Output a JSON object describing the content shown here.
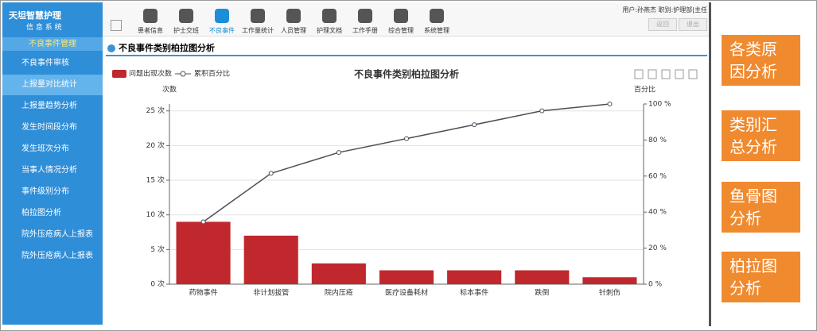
{
  "app": {
    "logo": "天坦智慧护理",
    "logo_sub": "信 息 系 统",
    "section": "不良事件管理",
    "menu": [
      "不良事件审核",
      "上报量对比统计",
      "上报量趋势分析",
      "发生时间段分布",
      "发生班次分布",
      "当事人情况分析",
      "事件级别分布",
      "柏拉图分析",
      "院外压疮病人上报表",
      "院外压疮病人上报表"
    ],
    "toolbar": [
      "患者信息",
      "护士交班",
      "不良事件",
      "工作量统计",
      "人员管理",
      "护理文档",
      "工作手册",
      "综合管理",
      "系统管理"
    ],
    "user": "用户:孙燕杰  职别:护理部|主任",
    "buttons": [
      "返回",
      "退出"
    ],
    "page_title": "不良事件类别柏拉图分析",
    "side_buttons": [
      "各类原因分析",
      "类别汇总分析",
      "鱼骨图分析",
      "柏拉图分析"
    ]
  },
  "chart_data": {
    "type": "pareto",
    "title": "不良事件类别柏拉图分析",
    "categories": [
      "药物事件",
      "非计划拔管",
      "院内压疮",
      "医疗设备耗材",
      "标本事件",
      "跌倒",
      "针刺伤"
    ],
    "series": [
      {
        "name": "问题出现次数",
        "color": "#c0282d",
        "values": [
          9,
          7,
          3,
          2,
          2,
          2,
          1
        ]
      },
      {
        "name": "累积百分比",
        "color": "#4a4f55",
        "axis": "y2",
        "values": [
          34.6,
          61.5,
          73.1,
          80.8,
          88.5,
          96.2,
          100
        ]
      }
    ],
    "y_label": "次数",
    "y2_label": "百分比",
    "ylim": [
      0,
      26
    ],
    "yticks": [
      {
        "value": 0,
        "label": "0 次"
      },
      {
        "value": 5,
        "label": "5 次"
      },
      {
        "value": 10,
        "label": "10 次"
      },
      {
        "value": 15,
        "label": "15 次"
      },
      {
        "value": 20,
        "label": "20 次"
      },
      {
        "value": 25,
        "label": "25 次"
      }
    ],
    "y2lim": [
      0,
      100
    ],
    "y2ticks": [
      {
        "value": 0,
        "label": "0 %"
      },
      {
        "value": 20,
        "label": "20 %"
      },
      {
        "value": 40,
        "label": "40 %"
      },
      {
        "value": 60,
        "label": "60 %"
      },
      {
        "value": 80,
        "label": "80 %"
      },
      {
        "value": 100,
        "label": "100 %"
      }
    ],
    "grid": true
  }
}
